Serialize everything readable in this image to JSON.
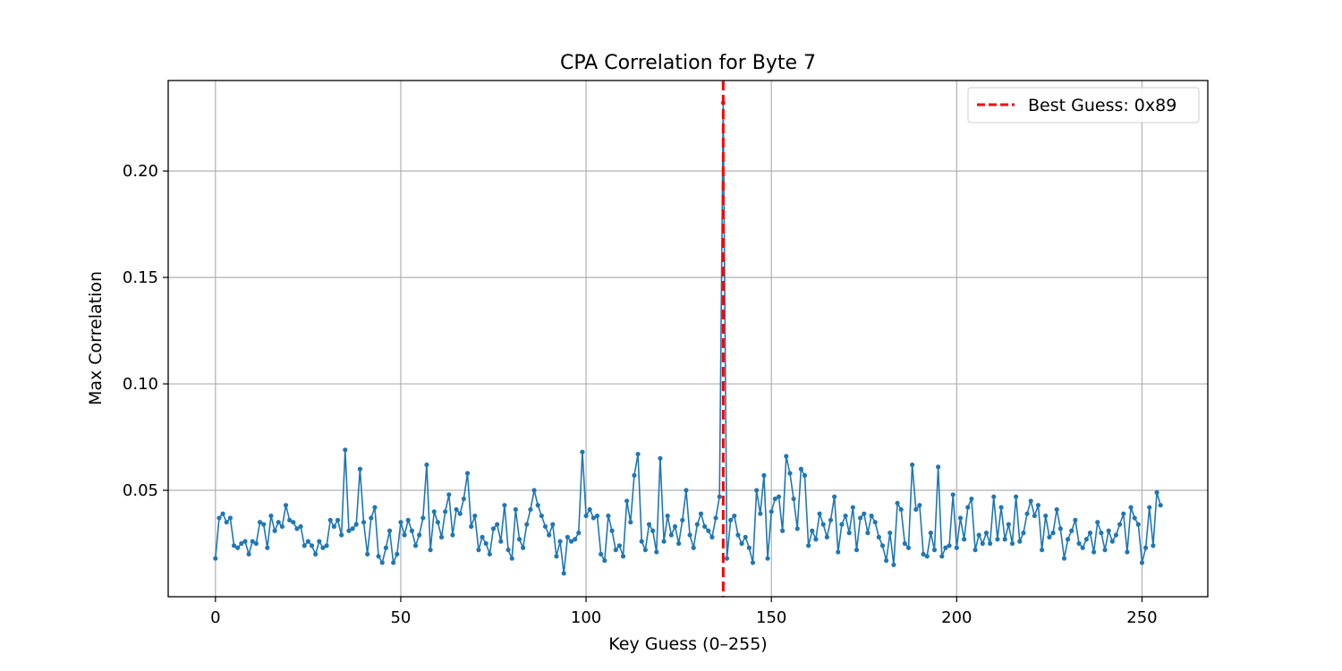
{
  "chart_data": {
    "type": "line",
    "title": "CPA Correlation for Byte 7",
    "xlabel": "Key Guess (0–255)",
    "ylabel": "Max Correlation",
    "xlim": [
      -12.75,
      267.75
    ],
    "ylim": [
      0.0,
      0.2425
    ],
    "xticks": [
      0,
      50,
      100,
      150,
      200,
      250
    ],
    "yticks": [
      0.05,
      0.1,
      0.15,
      0.2
    ],
    "ytick_labels": [
      "0.05",
      "0.10",
      "0.15",
      "0.20"
    ],
    "grid": true,
    "legend_position": "top-right",
    "series_color": "#1f77b4",
    "marker": "circle",
    "y": [
      0.018,
      0.037,
      0.039,
      0.035,
      0.037,
      0.024,
      0.023,
      0.025,
      0.026,
      0.02,
      0.026,
      0.025,
      0.035,
      0.034,
      0.023,
      0.038,
      0.031,
      0.035,
      0.033,
      0.043,
      0.036,
      0.035,
      0.032,
      0.033,
      0.024,
      0.026,
      0.024,
      0.02,
      0.026,
      0.023,
      0.024,
      0.036,
      0.033,
      0.036,
      0.029,
      0.069,
      0.031,
      0.032,
      0.034,
      0.06,
      0.035,
      0.02,
      0.037,
      0.042,
      0.019,
      0.016,
      0.023,
      0.031,
      0.016,
      0.02,
      0.035,
      0.029,
      0.036,
      0.031,
      0.024,
      0.029,
      0.037,
      0.062,
      0.022,
      0.04,
      0.035,
      0.028,
      0.04,
      0.048,
      0.029,
      0.041,
      0.039,
      0.046,
      0.058,
      0.033,
      0.038,
      0.022,
      0.028,
      0.025,
      0.02,
      0.032,
      0.034,
      0.026,
      0.043,
      0.022,
      0.018,
      0.041,
      0.027,
      0.023,
      0.034,
      0.041,
      0.05,
      0.043,
      0.038,
      0.033,
      0.029,
      0.034,
      0.019,
      0.026,
      0.011,
      0.028,
      0.026,
      0.027,
      0.03,
      0.068,
      0.038,
      0.041,
      0.037,
      0.038,
      0.02,
      0.017,
      0.038,
      0.031,
      0.022,
      0.024,
      0.019,
      0.045,
      0.035,
      0.057,
      0.067,
      0.026,
      0.022,
      0.034,
      0.031,
      0.021,
      0.065,
      0.026,
      0.038,
      0.029,
      0.033,
      0.025,
      0.036,
      0.05,
      0.029,
      0.023,
      0.034,
      0.039,
      0.033,
      0.031,
      0.028,
      0.037,
      0.047,
      0.232,
      0.018,
      0.036,
      0.038,
      0.029,
      0.025,
      0.028,
      0.023,
      0.016,
      0.05,
      0.039,
      0.057,
      0.018,
      0.04,
      0.046,
      0.047,
      0.031,
      0.066,
      0.058,
      0.046,
      0.032,
      0.06,
      0.057,
      0.024,
      0.031,
      0.027,
      0.039,
      0.034,
      0.028,
      0.036,
      0.047,
      0.021,
      0.034,
      0.038,
      0.03,
      0.042,
      0.022,
      0.037,
      0.039,
      0.03,
      0.038,
      0.035,
      0.028,
      0.024,
      0.017,
      0.03,
      0.015,
      0.044,
      0.041,
      0.025,
      0.023,
      0.062,
      0.041,
      0.043,
      0.02,
      0.019,
      0.03,
      0.022,
      0.061,
      0.019,
      0.023,
      0.024,
      0.048,
      0.023,
      0.037,
      0.027,
      0.042,
      0.046,
      0.022,
      0.029,
      0.025,
      0.03,
      0.025,
      0.047,
      0.027,
      0.042,
      0.027,
      0.034,
      0.025,
      0.047,
      0.026,
      0.03,
      0.039,
      0.045,
      0.038,
      0.043,
      0.022,
      0.038,
      0.028,
      0.03,
      0.041,
      0.032,
      0.018,
      0.027,
      0.031,
      0.036,
      0.025,
      0.023,
      0.027,
      0.03,
      0.021,
      0.035,
      0.03,
      0.022,
      0.031,
      0.026,
      0.029,
      0.034,
      0.039,
      0.021,
      0.042,
      0.037,
      0.034,
      0.016,
      0.023,
      0.042,
      0.024,
      0.049,
      0.043
    ],
    "best_guess": {
      "x": 137,
      "label": "Best Guess: 0x89",
      "color": "#ff0000",
      "style": "dashed"
    }
  }
}
